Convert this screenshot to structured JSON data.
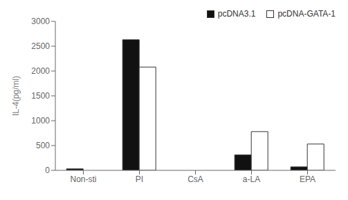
{
  "chart_data": {
    "type": "bar",
    "categories": [
      "Non-sti",
      "PI",
      "CsA",
      "a-LA",
      "EPA"
    ],
    "series": [
      {
        "name": "pcDNA3.1",
        "color": "#111111",
        "values": [
          30,
          2630,
          0,
          310,
          70
        ]
      },
      {
        "name": "pcDNA-GATA-1",
        "color": "#ffffff",
        "values": [
          0,
          2080,
          0,
          780,
          530
        ]
      }
    ],
    "ylabel": "IL-4(pg/ml)",
    "ylim": [
      0,
      3000
    ],
    "yticks": [
      0,
      500,
      1000,
      1500,
      2000,
      2500,
      3000
    ],
    "grid": false,
    "legend": "upper right"
  }
}
